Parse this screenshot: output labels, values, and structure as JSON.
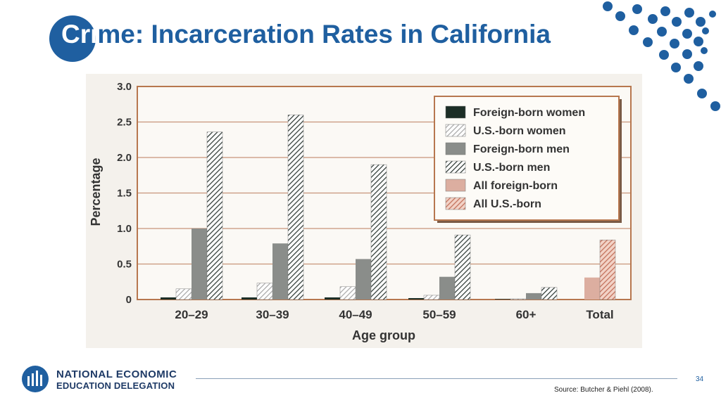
{
  "slide": {
    "title_prefix": "Cri",
    "title_rest": "me: Incarceration Rates in California",
    "page_number": "34",
    "source": "Source: Butcher & Piehl (2008).",
    "accent_color": "#1f5fa0"
  },
  "logo": {
    "line1": "NATIONAL ECONOMIC",
    "line2": "EDUCATION DELEGATION"
  },
  "chart_data": {
    "type": "bar",
    "title": "",
    "xlabel": "Age group",
    "ylabel": "Percentage",
    "ylim": [
      0,
      3.0
    ],
    "yticks": [
      "0",
      "0.5",
      "1.0",
      "1.5",
      "2.0",
      "2.5",
      "3.0"
    ],
    "grid": true,
    "legend_position": "top-right",
    "categories": [
      "20–29",
      "30–39",
      "40–49",
      "50–59",
      "60+",
      "Total"
    ],
    "series": [
      {
        "name": "Foreign-born women",
        "color": "#1c2e26",
        "pattern": "solid",
        "values": [
          0.03,
          0.03,
          0.03,
          0.02,
          0.0,
          null
        ]
      },
      {
        "name": "U.S.-born women",
        "color": "#bbbbbb",
        "pattern": "hatch-light",
        "values": [
          0.15,
          0.23,
          0.18,
          0.06,
          0.01,
          null
        ]
      },
      {
        "name": "Foreign-born men",
        "color": "#8a8d8a",
        "pattern": "solid",
        "values": [
          1.0,
          0.79,
          0.57,
          0.32,
          0.09,
          null
        ]
      },
      {
        "name": "U.S.-born men",
        "color": "#3d4a44",
        "pattern": "hatch-dark",
        "values": [
          2.36,
          2.6,
          1.9,
          0.91,
          0.17,
          null
        ]
      },
      {
        "name": "All foreign-born",
        "color": "#dcaea0",
        "pattern": "solid",
        "values": [
          null,
          null,
          null,
          null,
          null,
          0.31
        ]
      },
      {
        "name": "All U.S.-born",
        "color": "#c97a62",
        "pattern": "hatch-salmon",
        "values": [
          null,
          null,
          null,
          null,
          null,
          0.84
        ]
      }
    ]
  }
}
